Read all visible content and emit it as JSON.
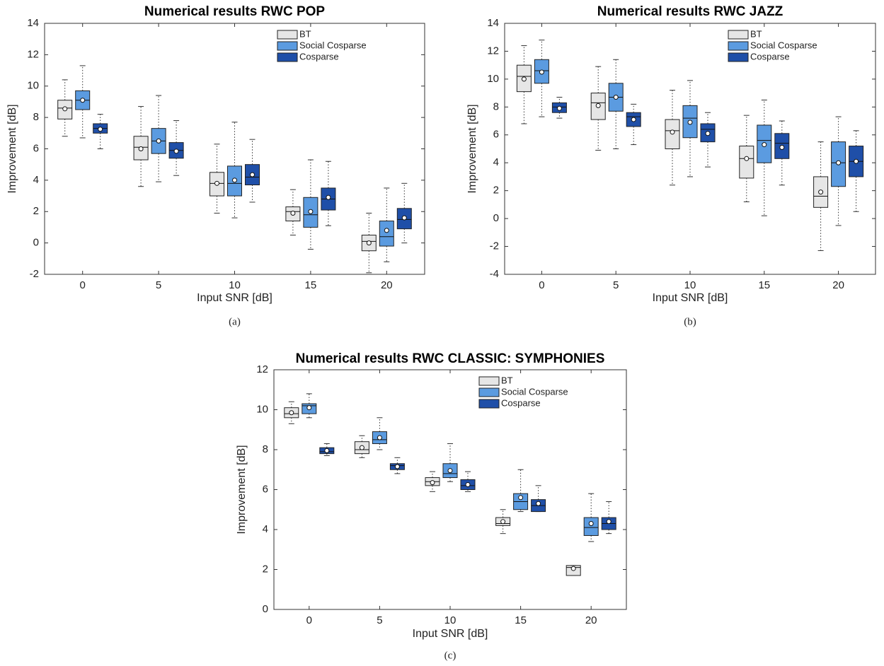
{
  "chart_data": [
    {
      "type": "box",
      "title": "Numerical results RWC POP",
      "x_label": "Input SNR [dB]",
      "y_label": "Improvement [dB]",
      "caption": "(a)",
      "categories": [
        "0",
        "5",
        "10",
        "15",
        "20"
      ],
      "ylim": [
        -2,
        14
      ],
      "yticks": [
        -2,
        0,
        2,
        4,
        6,
        8,
        10,
        12,
        14
      ],
      "grid": false,
      "legend": "upper right",
      "series": [
        {
          "name": "BT",
          "color": "#e6e6e6",
          "low": [
            6.8,
            3.6,
            1.9,
            0.5,
            -1.9
          ],
          "q1": [
            7.9,
            5.3,
            3.0,
            1.4,
            -0.5
          ],
          "median": [
            8.6,
            6.1,
            3.8,
            2.0,
            0.1
          ],
          "q3": [
            9.1,
            6.8,
            4.5,
            2.3,
            0.5
          ],
          "high": [
            10.4,
            8.7,
            6.3,
            3.4,
            1.9
          ],
          "mean": [
            8.55,
            6.0,
            3.8,
            1.9,
            0.0
          ]
        },
        {
          "name": "Social Cosparse",
          "color": "#5b9be0",
          "low": [
            6.7,
            3.9,
            1.6,
            -0.4,
            -1.2
          ],
          "q1": [
            8.5,
            5.7,
            3.0,
            1.0,
            -0.2
          ],
          "median": [
            9.1,
            6.5,
            3.8,
            1.8,
            0.4
          ],
          "q3": [
            9.7,
            7.3,
            4.9,
            2.9,
            1.4
          ],
          "high": [
            11.3,
            9.4,
            7.7,
            5.3,
            3.5
          ],
          "mean": [
            9.1,
            6.5,
            4.0,
            2.0,
            0.8
          ]
        },
        {
          "name": "Cosparse",
          "color": "#1f4fa8",
          "low": [
            6.0,
            4.3,
            2.6,
            1.1,
            0.0
          ],
          "q1": [
            7.0,
            5.4,
            3.7,
            2.1,
            0.9
          ],
          "median": [
            7.3,
            5.9,
            4.2,
            2.8,
            1.5
          ],
          "q3": [
            7.6,
            6.4,
            5.0,
            3.5,
            2.2
          ],
          "high": [
            8.2,
            7.8,
            6.6,
            5.2,
            3.8
          ],
          "mean": [
            7.25,
            5.85,
            4.35,
            2.9,
            1.6
          ]
        }
      ]
    },
    {
      "type": "box",
      "title": "Numerical results RWC JAZZ",
      "x_label": "Input SNR [dB]",
      "y_label": "Improvement [dB]",
      "caption": "(b)",
      "categories": [
        "0",
        "5",
        "10",
        "15",
        "20"
      ],
      "ylim": [
        -4,
        14
      ],
      "yticks": [
        -4,
        -2,
        0,
        2,
        4,
        6,
        8,
        10,
        12,
        14
      ],
      "grid": false,
      "legend": "upper right",
      "series": [
        {
          "name": "BT",
          "color": "#e6e6e6",
          "low": [
            6.8,
            4.9,
            2.4,
            1.2,
            -2.3
          ],
          "q1": [
            9.1,
            7.1,
            5.0,
            2.9,
            0.8
          ],
          "median": [
            10.2,
            8.3,
            6.3,
            4.3,
            1.6
          ],
          "q3": [
            11.0,
            9.0,
            7.1,
            5.2,
            3.0
          ],
          "high": [
            12.4,
            10.9,
            9.2,
            7.4,
            5.5
          ],
          "mean": [
            10.0,
            8.1,
            6.2,
            4.3,
            1.9
          ]
        },
        {
          "name": "Social Cosparse",
          "color": "#5b9be0",
          "low": [
            7.3,
            5.0,
            3.0,
            0.2,
            -0.5
          ],
          "q1": [
            9.7,
            7.7,
            5.8,
            4.0,
            2.3
          ],
          "median": [
            10.6,
            8.7,
            7.2,
            5.6,
            4.0
          ],
          "q3": [
            11.4,
            9.7,
            8.1,
            6.7,
            5.5
          ],
          "high": [
            12.8,
            11.4,
            9.9,
            8.5,
            7.3
          ],
          "mean": [
            10.5,
            8.7,
            6.9,
            5.3,
            4.0
          ]
        },
        {
          "name": "Cosparse",
          "color": "#1f4fa8",
          "low": [
            7.2,
            5.3,
            3.7,
            2.4,
            0.5
          ],
          "q1": [
            7.6,
            6.6,
            5.5,
            4.3,
            3.0
          ],
          "median": [
            8.0,
            7.3,
            6.4,
            5.4,
            4.1
          ],
          "q3": [
            8.3,
            7.6,
            6.8,
            6.1,
            5.2
          ],
          "high": [
            8.7,
            8.2,
            7.6,
            7.0,
            6.3
          ],
          "mean": [
            7.9,
            7.1,
            6.1,
            5.1,
            4.1
          ]
        }
      ]
    },
    {
      "type": "box",
      "title": "Numerical results RWC CLASSIC: SYMPHONIES",
      "x_label": "Input SNR [dB]",
      "y_label": "Improvement [dB]",
      "caption": "(c)",
      "categories": [
        "0",
        "5",
        "10",
        "15",
        "20"
      ],
      "ylim": [
        0,
        12
      ],
      "yticks": [
        0,
        2,
        4,
        6,
        8,
        10,
        12
      ],
      "grid": false,
      "legend": "upper right",
      "series": [
        {
          "name": "BT",
          "color": "#e6e6e6",
          "low": [
            9.3,
            7.6,
            5.9,
            3.8,
            1.7
          ],
          "q1": [
            9.6,
            7.8,
            6.2,
            4.2,
            1.7
          ],
          "median": [
            9.8,
            8.0,
            6.4,
            4.3,
            2.1
          ],
          "q3": [
            10.1,
            8.4,
            6.6,
            4.6,
            2.2
          ],
          "high": [
            10.4,
            8.7,
            6.9,
            5.0,
            2.2
          ],
          "mean": [
            9.85,
            8.1,
            6.35,
            4.4,
            2.05
          ]
        },
        {
          "name": "Social Cosparse",
          "color": "#5b9be0",
          "low": [
            9.6,
            8.0,
            6.4,
            4.9,
            3.4
          ],
          "q1": [
            9.8,
            8.3,
            6.6,
            5.0,
            3.7
          ],
          "median": [
            10.2,
            8.5,
            6.8,
            5.4,
            4.1
          ],
          "q3": [
            10.3,
            8.9,
            7.3,
            5.8,
            4.6
          ],
          "high": [
            10.8,
            9.6,
            8.3,
            7.0,
            5.8
          ],
          "mean": [
            10.1,
            8.6,
            6.95,
            5.6,
            4.3
          ]
        },
        {
          "name": "Cosparse",
          "color": "#1f4fa8",
          "low": [
            7.7,
            6.8,
            5.9,
            4.9,
            3.8
          ],
          "q1": [
            7.8,
            7.0,
            6.0,
            4.9,
            4.0
          ],
          "median": [
            7.9,
            7.2,
            6.2,
            5.2,
            4.3
          ],
          "q3": [
            8.1,
            7.3,
            6.5,
            5.5,
            4.6
          ],
          "high": [
            8.3,
            7.6,
            6.9,
            6.2,
            5.4
          ],
          "mean": [
            7.95,
            7.15,
            6.25,
            5.3,
            4.4
          ]
        }
      ]
    }
  ]
}
